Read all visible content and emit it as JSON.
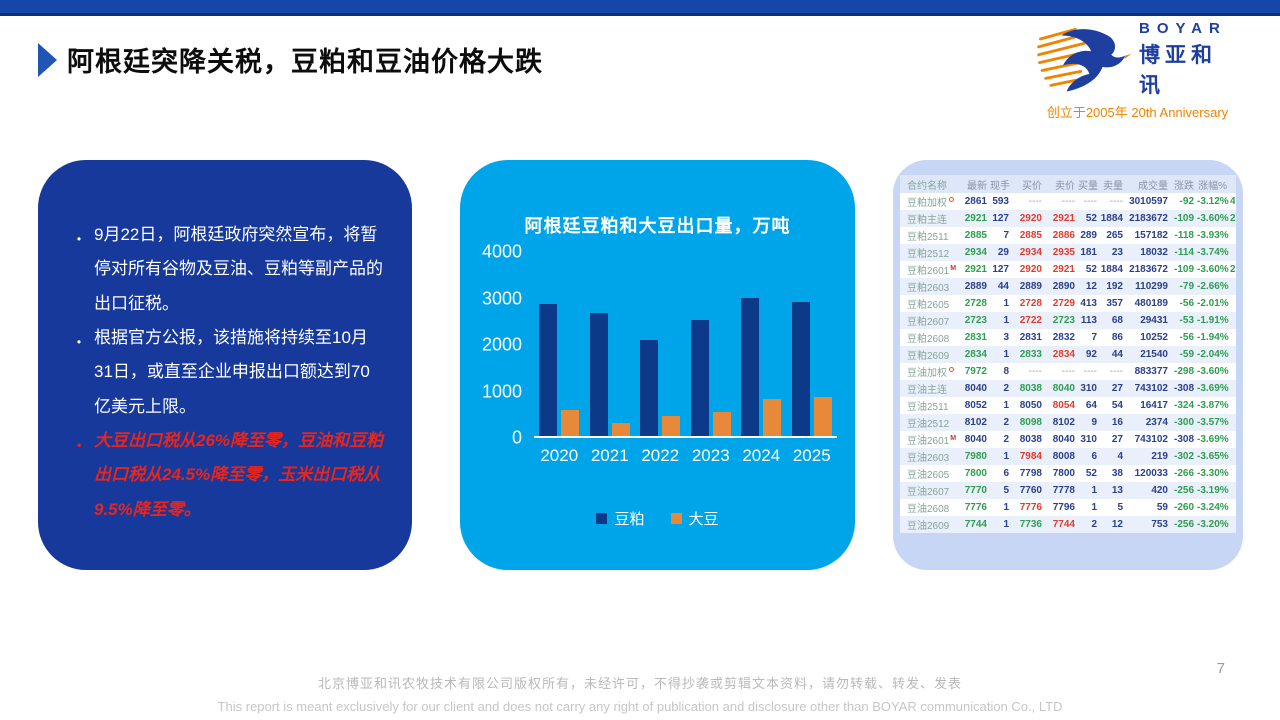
{
  "slide": {
    "title": "阿根廷突降关税，豆粕和豆油价格大跌",
    "page_number": "7"
  },
  "logo": {
    "brand_en": "BOYAR",
    "brand_cn": "博亚和讯",
    "tagline": "创立于2005年 20th Anniversary"
  },
  "key_points": {
    "bullets": [
      {
        "text": "9月22日，阿根廷政府突然宣布，将暂停对所有谷物及豆油、豆粕等副产品的出口征税。",
        "emphasis": false
      },
      {
        "text": "根据官方公报，该措施将持续至10月31日，或直至企业申报出口额达到70亿美元上限。",
        "emphasis": false
      },
      {
        "text": "大豆出口税从26%降至零，豆油和豆粕出口税从24.5%降至零，玉米出口税从9.5%降至零。",
        "emphasis": true
      }
    ]
  },
  "chart_data": {
    "type": "bar",
    "title": "阿根廷豆粕和大豆出口量，万吨",
    "categories": [
      "2020",
      "2021",
      "2022",
      "2023",
      "2024",
      "2025"
    ],
    "series": [
      {
        "name": "豆粕",
        "color": "#0d3a88",
        "values": [
          2830,
          2650,
          2070,
          2490,
          2960,
          2890
        ]
      },
      {
        "name": "大豆",
        "color": "#e8893a",
        "values": [
          550,
          290,
          420,
          510,
          790,
          830
        ]
      }
    ],
    "ylim": [
      0,
      4000
    ],
    "yticks": [
      4000,
      3000,
      2000,
      1000,
      0
    ],
    "xlabel": "",
    "ylabel": "",
    "grid": false,
    "legend_position": "bottom"
  },
  "quote_table": {
    "headers": [
      "合约名称",
      "最新",
      "现手",
      "买价",
      "卖价",
      "买量",
      "卖量",
      "成交量",
      "涨跌",
      "涨幅%"
    ],
    "rows": [
      {
        "name": "豆粕加权",
        "sup": "o",
        "cells": [
          "2861",
          "593",
          "----",
          "----",
          "----",
          "----",
          "3010597",
          "-92",
          "-3.12%"
        ],
        "colors": [
          "b",
          "b",
          "d",
          "d",
          "d",
          "d",
          "b",
          "g",
          "g"
        ],
        "extra": "4"
      },
      {
        "name": "豆粕主连",
        "sup": "",
        "cells": [
          "2921",
          "127",
          "2920",
          "2921",
          "52",
          "1884",
          "2183672",
          "-109",
          "-3.60%"
        ],
        "colors": [
          "g",
          "b",
          "r",
          "r",
          "b",
          "b",
          "b",
          "g",
          "g"
        ],
        "extra": "2"
      },
      {
        "name": "豆粕2511",
        "sup": "",
        "cells": [
          "2885",
          "7",
          "2885",
          "2886",
          "289",
          "265",
          "157182",
          "-118",
          "-3.93%"
        ],
        "colors": [
          "g",
          "b",
          "r",
          "r",
          "b",
          "b",
          "b",
          "g",
          "g"
        ],
        "extra": ""
      },
      {
        "name": "豆粕2512",
        "sup": "",
        "cells": [
          "2934",
          "29",
          "2934",
          "2935",
          "181",
          "23",
          "18032",
          "-114",
          "-3.74%"
        ],
        "colors": [
          "g",
          "b",
          "r",
          "r",
          "b",
          "b",
          "b",
          "g",
          "g"
        ],
        "extra": ""
      },
      {
        "name": "豆粕2601",
        "sup": "M",
        "cells": [
          "2921",
          "127",
          "2920",
          "2921",
          "52",
          "1884",
          "2183672",
          "-109",
          "-3.60%"
        ],
        "colors": [
          "g",
          "b",
          "r",
          "r",
          "b",
          "b",
          "b",
          "g",
          "g"
        ],
        "extra": "2"
      },
      {
        "name": "豆粕2603",
        "sup": "",
        "cells": [
          "2889",
          "44",
          "2889",
          "2890",
          "12",
          "192",
          "110299",
          "-79",
          "-2.66%"
        ],
        "colors": [
          "b",
          "b",
          "b",
          "b",
          "b",
          "b",
          "b",
          "g",
          "g"
        ],
        "extra": ""
      },
      {
        "name": "豆粕2605",
        "sup": "",
        "cells": [
          "2728",
          "1",
          "2728",
          "2729",
          "413",
          "357",
          "480189",
          "-56",
          "-2.01%"
        ],
        "colors": [
          "g",
          "b",
          "r",
          "r",
          "b",
          "b",
          "b",
          "g",
          "g"
        ],
        "extra": ""
      },
      {
        "name": "豆粕2607",
        "sup": "",
        "cells": [
          "2723",
          "1",
          "2722",
          "2723",
          "113",
          "68",
          "29431",
          "-53",
          "-1.91%"
        ],
        "colors": [
          "g",
          "b",
          "r",
          "g",
          "b",
          "b",
          "b",
          "g",
          "g"
        ],
        "extra": ""
      },
      {
        "name": "豆粕2608",
        "sup": "",
        "cells": [
          "2831",
          "3",
          "2831",
          "2832",
          "7",
          "86",
          "10252",
          "-56",
          "-1.94%"
        ],
        "colors": [
          "g",
          "b",
          "b",
          "b",
          "b",
          "b",
          "b",
          "g",
          "g"
        ],
        "extra": ""
      },
      {
        "name": "豆粕2609",
        "sup": "",
        "cells": [
          "2834",
          "1",
          "2833",
          "2834",
          "92",
          "44",
          "21540",
          "-59",
          "-2.04%"
        ],
        "colors": [
          "g",
          "b",
          "g",
          "r",
          "b",
          "b",
          "b",
          "g",
          "g"
        ],
        "extra": ""
      },
      {
        "name": "豆油加权",
        "sup": "o",
        "cells": [
          "7972",
          "8",
          "----",
          "----",
          "----",
          "----",
          "883377",
          "-298",
          "-3.60%"
        ],
        "colors": [
          "g",
          "b",
          "d",
          "d",
          "d",
          "d",
          "b",
          "g",
          "g"
        ],
        "extra": ""
      },
      {
        "name": "豆油主连",
        "sup": "",
        "cells": [
          "8040",
          "2",
          "8038",
          "8040",
          "310",
          "27",
          "743102",
          "-308",
          "-3.69%"
        ],
        "colors": [
          "b",
          "b",
          "g",
          "g",
          "b",
          "b",
          "b",
          "b",
          "g"
        ],
        "extra": ""
      },
      {
        "name": "豆油2511",
        "sup": "",
        "cells": [
          "8052",
          "1",
          "8050",
          "8054",
          "64",
          "54",
          "16417",
          "-324",
          "-3.87%"
        ],
        "colors": [
          "b",
          "b",
          "b",
          "r",
          "b",
          "b",
          "b",
          "g",
          "g"
        ],
        "extra": ""
      },
      {
        "name": "豆油2512",
        "sup": "",
        "cells": [
          "8102",
          "2",
          "8098",
          "8102",
          "9",
          "16",
          "2374",
          "-300",
          "-3.57%"
        ],
        "colors": [
          "b",
          "b",
          "g",
          "b",
          "b",
          "b",
          "b",
          "g",
          "g"
        ],
        "extra": ""
      },
      {
        "name": "豆油2601",
        "sup": "M",
        "cells": [
          "8040",
          "2",
          "8038",
          "8040",
          "310",
          "27",
          "743102",
          "-308",
          "-3.69%"
        ],
        "colors": [
          "b",
          "b",
          "b",
          "b",
          "b",
          "b",
          "b",
          "b",
          "g"
        ],
        "extra": ""
      },
      {
        "name": "豆油2603",
        "sup": "",
        "cells": [
          "7980",
          "1",
          "7984",
          "8008",
          "6",
          "4",
          "219",
          "-302",
          "-3.65%"
        ],
        "colors": [
          "g",
          "b",
          "r",
          "b",
          "b",
          "b",
          "b",
          "g",
          "g"
        ],
        "extra": ""
      },
      {
        "name": "豆油2605",
        "sup": "",
        "cells": [
          "7800",
          "6",
          "7798",
          "7800",
          "52",
          "38",
          "120033",
          "-266",
          "-3.30%"
        ],
        "colors": [
          "g",
          "b",
          "b",
          "b",
          "b",
          "b",
          "b",
          "g",
          "g"
        ],
        "extra": ""
      },
      {
        "name": "豆油2607",
        "sup": "",
        "cells": [
          "7770",
          "5",
          "7760",
          "7778",
          "1",
          "13",
          "420",
          "-256",
          "-3.19%"
        ],
        "colors": [
          "g",
          "b",
          "b",
          "b",
          "b",
          "b",
          "b",
          "g",
          "g"
        ],
        "extra": ""
      },
      {
        "name": "豆油2608",
        "sup": "",
        "cells": [
          "7776",
          "1",
          "7776",
          "7796",
          "1",
          "5",
          "59",
          "-260",
          "-3.24%"
        ],
        "colors": [
          "g",
          "b",
          "r",
          "b",
          "b",
          "b",
          "b",
          "g",
          "g"
        ],
        "extra": ""
      },
      {
        "name": "豆油2609",
        "sup": "",
        "cells": [
          "7744",
          "1",
          "7736",
          "7744",
          "2",
          "12",
          "753",
          "-256",
          "-3.20%"
        ],
        "colors": [
          "g",
          "b",
          "g",
          "r",
          "b",
          "b",
          "b",
          "g",
          "g"
        ],
        "extra": ""
      }
    ]
  },
  "footer": {
    "line_cn": "北京博亚和讯农牧技术有限公司版权所有，未经许可，不得抄袭或剪辑文本资料，请勿转载、转发、发表",
    "line_en": "This report is meant exclusively for our client and does not carry any right of publication and disclosure other than BOYAR communication Co., LTD"
  },
  "theme": {
    "top_bar_blue": "#1647a8",
    "top_bar_line": "#0e2f77",
    "panel_navy": "#16399b",
    "panel_cyan": "#00a5e9",
    "panel_lavender": "#c7d6f4",
    "bar_navy": "#0d3a88",
    "bar_orange": "#e8893a",
    "alert_red": "#e8251d",
    "table_green": "#2e9e4f",
    "table_red": "#e23b2e",
    "table_navy": "#2b3f8c",
    "logo_blue": "#1e3fa0",
    "logo_orange": "#f08300"
  }
}
